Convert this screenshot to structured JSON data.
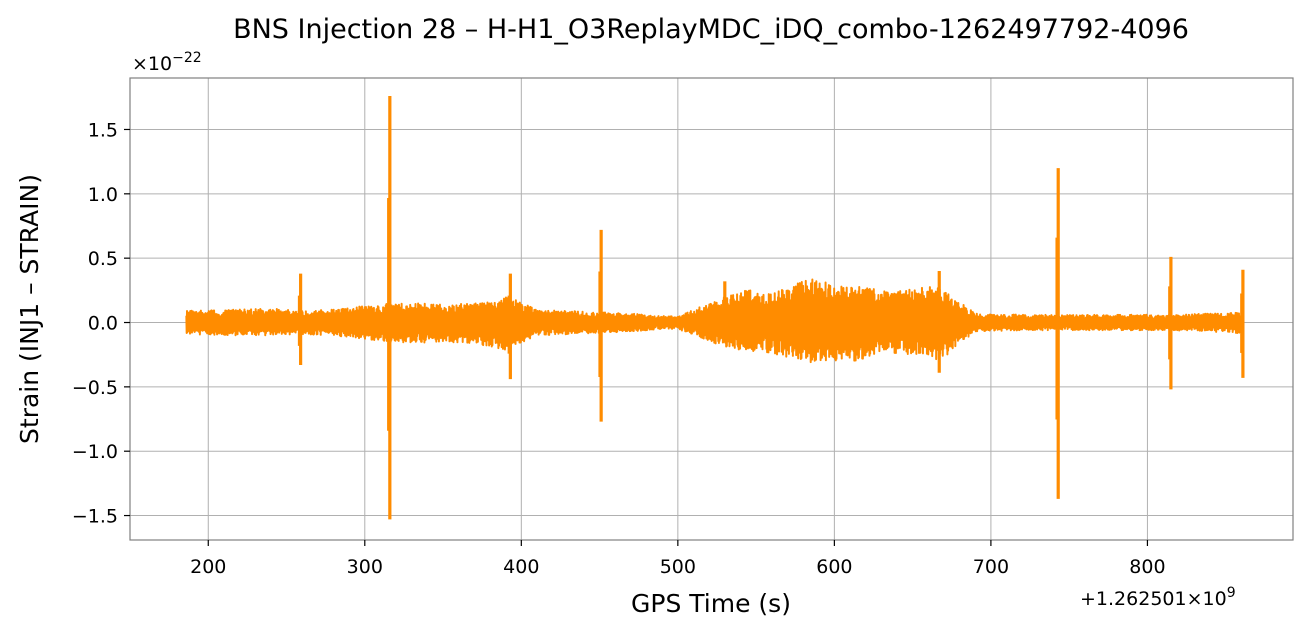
{
  "chart_data": {
    "type": "line",
    "title": "BNS Injection 28 – H-H1_O3ReplayMDC_iDQ_combo-1262497792-4096",
    "xlabel": "GPS Time (s)",
    "ylabel": "Strain (INJ1 – STRAIN)",
    "x_offset_label": "+1.262501×10",
    "x_offset_exponent": "9",
    "y_scale_label": "×10",
    "y_scale_exponent": "−22",
    "xlim": [
      150,
      893
    ],
    "ylim": [
      -1.69,
      1.9
    ],
    "grid": true,
    "line_color": "#ff8c00",
    "x_ticks": [
      200,
      300,
      400,
      500,
      600,
      700,
      800
    ],
    "x_tick_labels": [
      "200",
      "300",
      "400",
      "500",
      "600",
      "700",
      "800"
    ],
    "y_ticks": [
      -1.5,
      -1.0,
      -0.5,
      0.0,
      0.5,
      1.0,
      1.5
    ],
    "y_tick_labels": [
      "−1.5",
      "−1.0",
      "−0.5",
      "0.0",
      "0.5",
      "1.0",
      "1.5"
    ],
    "envelope": {
      "x": [
        186,
        215,
        240,
        259,
        280,
        300,
        316,
        330,
        350,
        370,
        392,
        410,
        430,
        450,
        470,
        490,
        500,
        520,
        530,
        545,
        560,
        575,
        585,
        600,
        615,
        630,
        645,
        660,
        667,
        690,
        720,
        742,
        770,
        790,
        815,
        840,
        861
      ],
      "upper": [
        0.09,
        0.1,
        0.11,
        0.09,
        0.1,
        0.13,
        0.15,
        0.15,
        0.14,
        0.15,
        0.2,
        0.1,
        0.09,
        0.08,
        0.07,
        0.05,
        0.05,
        0.15,
        0.2,
        0.26,
        0.22,
        0.3,
        0.34,
        0.3,
        0.28,
        0.25,
        0.25,
        0.28,
        0.28,
        0.07,
        0.06,
        0.06,
        0.06,
        0.06,
        0.06,
        0.07,
        0.08
      ],
      "lower": [
        -0.09,
        -0.1,
        -0.1,
        -0.09,
        -0.1,
        -0.13,
        -0.15,
        -0.16,
        -0.15,
        -0.16,
        -0.22,
        -0.1,
        -0.09,
        -0.08,
        -0.07,
        -0.05,
        -0.05,
        -0.14,
        -0.2,
        -0.22,
        -0.24,
        -0.3,
        -0.32,
        -0.3,
        -0.3,
        -0.22,
        -0.25,
        -0.27,
        -0.3,
        -0.07,
        -0.06,
        -0.06,
        -0.06,
        -0.06,
        -0.06,
        -0.07,
        -0.09
      ]
    },
    "spikes": [
      {
        "x": 259,
        "peak": 0.38,
        "trough": -0.33
      },
      {
        "x": 316,
        "peak": 1.76,
        "trough": -1.53
      },
      {
        "x": 393,
        "peak": 0.38,
        "trough": -0.44
      },
      {
        "x": 451,
        "peak": 0.72,
        "trough": -0.77
      },
      {
        "x": 530,
        "peak": 0.32,
        "trough": -0.1
      },
      {
        "x": 667,
        "peak": 0.4,
        "trough": -0.39
      },
      {
        "x": 743,
        "peak": 1.2,
        "trough": -1.37
      },
      {
        "x": 815,
        "peak": 0.51,
        "trough": -0.52
      },
      {
        "x": 861,
        "peak": 0.41,
        "trough": -0.43
      }
    ]
  }
}
